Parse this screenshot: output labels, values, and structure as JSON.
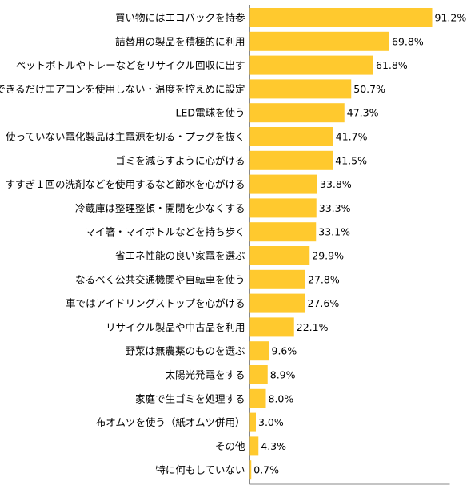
{
  "chart_data": {
    "type": "bar",
    "orientation": "horizontal",
    "bar_color": "#FFC92E",
    "axis_color": "#888888",
    "value_suffix": "%",
    "xlim": [
      0,
      100
    ],
    "grid": false,
    "categories": [
      "買い物にはエコバックを持参",
      "詰替用の製品を積極的に利用",
      "ペットボトルやトレーなどをリサイクル回収に出す",
      "できるだけエアコンを使用しない・温度を控えめに設定",
      "LED電球を使う",
      "使っていない電化製品は主電源を切る・プラグを抜く",
      "ゴミを減らすように心がける",
      "すすぎ１回の洗剤などを使用するなど節水を心がける",
      "冷蔵庫は整理整頓・開閉を少なくする",
      "マイ箸・マイボトルなどを持ち歩く",
      "省エネ性能の良い家電を選ぶ",
      "なるべく公共交通機関や自転車を使う",
      "車ではアイドリングストップを心がける",
      "リサイクル製品や中古品を利用",
      "野菜は無農薬のものを選ぶ",
      "太陽光発電をする",
      "家庭で生ゴミを処理する",
      "布オムツを使う（紙オムツ併用）",
      "その他",
      "特に何もしていない"
    ],
    "values": [
      91.2,
      69.8,
      61.8,
      50.7,
      47.3,
      41.7,
      41.5,
      33.8,
      33.3,
      33.1,
      29.9,
      27.8,
      27.6,
      22.1,
      9.6,
      8.9,
      8.0,
      3.0,
      4.3,
      0.7
    ],
    "value_labels": [
      "91.2%",
      "69.8%",
      "61.8%",
      "50.7%",
      "47.3%",
      "41.7%",
      "41.5%",
      "33.8%",
      "33.3%",
      "33.1%",
      "29.9%",
      "27.8%",
      "27.6%",
      "22.1%",
      "9.6%",
      "8.9%",
      "8.0%",
      "3.0%",
      "4.3%",
      "0.7%"
    ]
  }
}
